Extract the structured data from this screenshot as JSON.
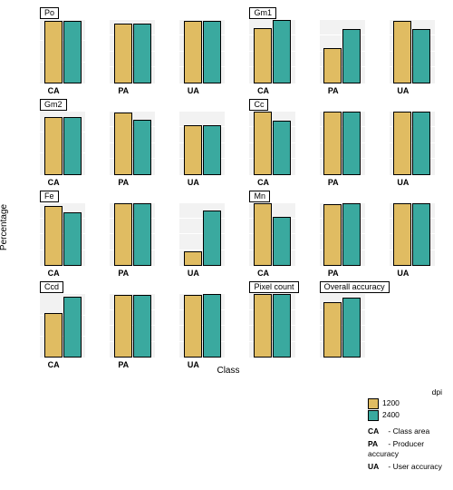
{
  "global": {
    "ylabel": "Percentage",
    "xlabel": "Class",
    "colors": {
      "s1": "#e0bc62",
      "s2": "#3aa99f"
    },
    "panel_bg": "#f2f2f2",
    "grid_color": "#ffffff"
  },
  "legend": {
    "title": "dpi",
    "items": [
      {
        "label": "1200",
        "color": "#e0bc62"
      },
      {
        "label": "2400",
        "color": "#3aa99f"
      }
    ],
    "explanations": [
      {
        "key": "CA",
        "text": "- Class area"
      },
      {
        "key": "PA",
        "text": "- Producer accuracy"
      },
      {
        "key": "UA",
        "text": "- User accuracy"
      }
    ]
  },
  "rows": [
    [
      {
        "strip": "Po",
        "strip_span": 1,
        "xtick": "CA",
        "ymax": 3,
        "yticks": [
          1,
          2,
          3
        ],
        "v1": 2.95,
        "v2": 2.95
      },
      {
        "xtick": "PA",
        "ymax": 100,
        "yticks": [
          25,
          50,
          75,
          100
        ],
        "v1": 95,
        "v2": 95
      },
      {
        "xtick": "UA",
        "ymax": 100,
        "yticks": [
          25,
          50,
          75,
          100
        ],
        "v1": 99,
        "v2": 99
      },
      {
        "strip": "Gm1",
        "strip_span": 1,
        "xtick": "CA",
        "ymax": 40,
        "yticks": [
          10,
          20,
          30,
          40
        ],
        "v1": 35,
        "v2": 40
      },
      {
        "xtick": "PA",
        "ymax": 100,
        "yticks": [
          25,
          50,
          75,
          100
        ],
        "v1": 55,
        "v2": 85
      },
      {
        "xtick": "UA",
        "ymax": 100,
        "yticks": [
          25,
          50,
          75,
          100
        ],
        "v1": 99,
        "v2": 85
      }
    ],
    [
      {
        "strip": "Gm2",
        "strip_span": 1,
        "xtick": "CA",
        "ymax": 60,
        "yticks": [
          20,
          40,
          60
        ],
        "v1": 55,
        "v2": 55
      },
      {
        "xtick": "PA",
        "ymax": 100,
        "yticks": [
          25,
          50,
          75,
          100
        ],
        "v1": 98,
        "v2": 87
      },
      {
        "xtick": "UA",
        "ymax": 100,
        "yticks": [
          25,
          50,
          75,
          100
        ],
        "v1": 78,
        "v2": 78
      },
      {
        "strip": "Cc",
        "strip_span": 1,
        "xtick": "CA",
        "ymax": 100,
        "yticks": [
          25,
          50,
          75,
          100
        ],
        "v1": 100,
        "v2": 85
      },
      {
        "xtick": "PA",
        "ymax": 100,
        "yticks": [
          25,
          50,
          75,
          100
        ],
        "v1": 99,
        "v2": 100
      },
      {
        "xtick": "UA",
        "ymax": 100,
        "yticks": [
          25,
          50,
          75,
          100
        ],
        "v1": 100,
        "v2": 100
      }
    ],
    [
      {
        "strip": "Fe",
        "strip_span": 1,
        "xtick": "CA",
        "ymax": 2.0,
        "yticks": [
          0.5,
          1.0,
          1.5,
          2.0
        ],
        "v1": 1.9,
        "v2": 1.7
      },
      {
        "xtick": "PA",
        "ymax": 100,
        "yticks": [
          25,
          50,
          75,
          100
        ],
        "v1": 100,
        "v2": 100
      },
      {
        "xtick": "UA",
        "ymax": 100,
        "yticks": [
          25,
          50,
          75,
          100
        ],
        "v1": 24,
        "v2": 88
      },
      {
        "strip": "Mn",
        "strip_span": 1,
        "xtick": "CA",
        "ymax": 0.2,
        "yticks": [
          0.05,
          0.1,
          0.15,
          0.2
        ],
        "v1": 0.2,
        "v2": 0.155
      },
      {
        "xtick": "PA",
        "ymax": 100,
        "yticks": [
          25,
          50,
          75,
          100
        ],
        "v1": 98,
        "v2": 100
      },
      {
        "xtick": "UA",
        "ymax": 100,
        "yticks": [
          25,
          50,
          75,
          100
        ],
        "v1": 100,
        "v2": 100
      }
    ],
    [
      {
        "strip": "Ccd",
        "strip_span": 1,
        "xtick": "CA",
        "ymax": 0.3,
        "yticks": [
          0.1,
          0.2,
          0.3
        ],
        "v1": 0.21,
        "v2": 0.29
      },
      {
        "xtick": "PA",
        "ymax": 100,
        "yticks": [
          25,
          50,
          75,
          100
        ],
        "v1": 99,
        "v2": 99
      },
      {
        "xtick": "UA",
        "ymax": 100,
        "yticks": [
          25,
          50,
          75,
          100
        ],
        "v1": 99,
        "v2": 100
      },
      {
        "strip": "Pixel count",
        "strip_span": 1,
        "xtick": "",
        "ymax": 400,
        "yticks": [
          100,
          200,
          300,
          400
        ],
        "v1": 400,
        "v2": 400
      },
      {
        "strip": "Overall accuracy",
        "strip_span": 1,
        "xtick": "",
        "ymax": 100,
        "yticks": [
          25,
          50,
          75,
          100
        ],
        "v1": 88,
        "v2": 95
      },
      {
        "blank": true
      }
    ],
    [
      {
        "blank": true
      },
      {
        "blank": true
      },
      {
        "blank": true
      },
      {
        "blank": true
      },
      {
        "blank": true
      },
      {
        "blank": true
      }
    ]
  ]
}
